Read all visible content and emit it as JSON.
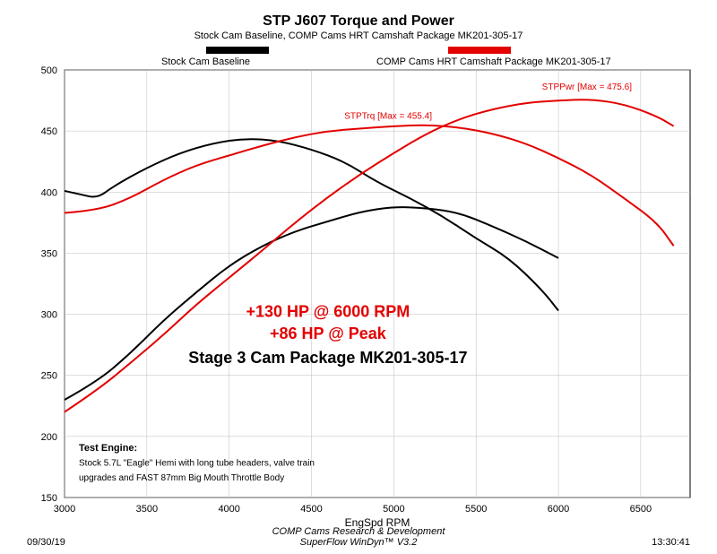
{
  "title": {
    "main": "STP J607 Torque and Power",
    "sub": "Stock Cam Baseline, COMP Cams HRT Camshaft Package MK201-305-17"
  },
  "legend": {
    "stock": "Stock Cam Baseline",
    "comp": "COMP Cams HRT Camshaft Package MK201-305-17",
    "stock_color": "#000000",
    "comp_color": "#e30000"
  },
  "chart": {
    "xlim": [
      3000,
      6800
    ],
    "ylim": [
      150,
      500
    ],
    "xtick_step": 500,
    "ytick_step": 50,
    "xlast": 6500,
    "xlabel": "EngSpd RPM",
    "bg": "#ffffff",
    "grid_color": "#bdbdbd",
    "axis_color": "#000000",
    "line_width": 2
  },
  "series": {
    "stock_torque": {
      "color": "#000000",
      "points": [
        [
          3000,
          401
        ],
        [
          3100,
          398
        ],
        [
          3200,
          395
        ],
        [
          3300,
          405
        ],
        [
          3500,
          420
        ],
        [
          3700,
          432
        ],
        [
          3900,
          440
        ],
        [
          4100,
          444
        ],
        [
          4300,
          442
        ],
        [
          4500,
          435
        ],
        [
          4700,
          425
        ],
        [
          4900,
          408
        ],
        [
          5100,
          395
        ],
        [
          5300,
          380
        ],
        [
          5500,
          362
        ],
        [
          5700,
          346
        ],
        [
          5900,
          320
        ],
        [
          6000,
          303
        ]
      ]
    },
    "stock_power": {
      "color": "#000000",
      "points": [
        [
          3000,
          230
        ],
        [
          3200,
          245
        ],
        [
          3400,
          268
        ],
        [
          3600,
          295
        ],
        [
          3800,
          318
        ],
        [
          4000,
          340
        ],
        [
          4200,
          356
        ],
        [
          4400,
          368
        ],
        [
          4600,
          376
        ],
        [
          4800,
          384
        ],
        [
          5000,
          388
        ],
        [
          5200,
          387
        ],
        [
          5400,
          383
        ],
        [
          5600,
          372
        ],
        [
          5800,
          360
        ],
        [
          6000,
          346
        ]
      ]
    },
    "comp_torque": {
      "color": "#e30000",
      "points": [
        [
          3000,
          383
        ],
        [
          3200,
          385
        ],
        [
          3400,
          395
        ],
        [
          3600,
          410
        ],
        [
          3800,
          422
        ],
        [
          4000,
          430
        ],
        [
          4200,
          438
        ],
        [
          4400,
          445
        ],
        [
          4600,
          450
        ],
        [
          4800,
          452
        ],
        [
          5000,
          454
        ],
        [
          5200,
          455
        ],
        [
          5400,
          453
        ],
        [
          5600,
          448
        ],
        [
          5800,
          440
        ],
        [
          6000,
          428
        ],
        [
          6200,
          414
        ],
        [
          6400,
          395
        ],
        [
          6600,
          375
        ],
        [
          6700,
          356
        ]
      ]
    },
    "comp_power": {
      "color": "#e30000",
      "points": [
        [
          3000,
          220
        ],
        [
          3200,
          238
        ],
        [
          3400,
          260
        ],
        [
          3600,
          283
        ],
        [
          3800,
          308
        ],
        [
          4000,
          330
        ],
        [
          4200,
          352
        ],
        [
          4400,
          375
        ],
        [
          4600,
          396
        ],
        [
          4800,
          415
        ],
        [
          5000,
          432
        ],
        [
          5200,
          448
        ],
        [
          5400,
          460
        ],
        [
          5600,
          468
        ],
        [
          5800,
          473
        ],
        [
          6000,
          475
        ],
        [
          6200,
          476
        ],
        [
          6400,
          472
        ],
        [
          6600,
          462
        ],
        [
          6700,
          454
        ]
      ]
    }
  },
  "annotations": {
    "trq_label": "STPTrq [Max = 455.4]",
    "pwr_label": "STPPwr [Max = 475.6]",
    "line1": "+130 HP @ 6000 RPM",
    "line2": "+86 HP @ Peak",
    "line3": "Stage 3 Cam Package MK201-305-17"
  },
  "test_engine": {
    "title": "Test Engine:",
    "line1": "Stock 5.7L \"Eagle\" Hemi with long tube headers, valve train",
    "line2": "upgrades and FAST 87mm Big Mouth Throttle Body"
  },
  "footer": {
    "date": "09/30/19",
    "center1": "COMP Cams Research & Development",
    "center2": "SuperFlow WinDyn™ V3.2",
    "time": "13:30:41"
  }
}
